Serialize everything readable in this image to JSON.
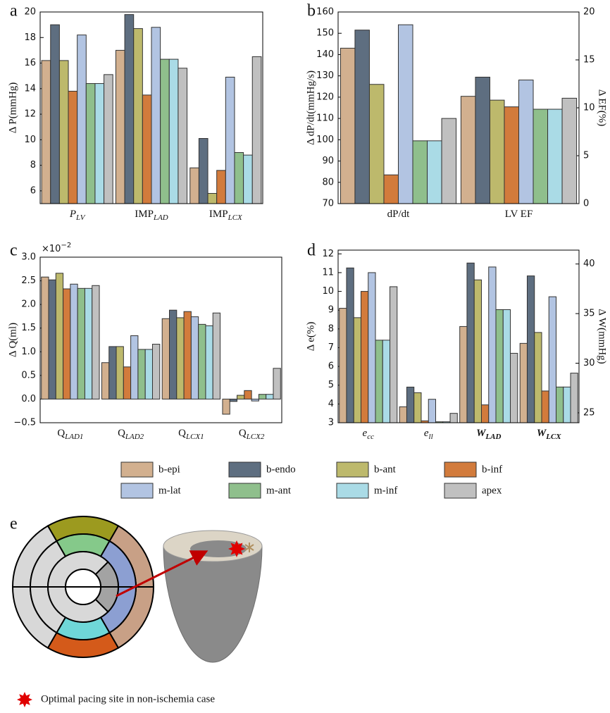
{
  "legend": {
    "entries": [
      {
        "name": "b-epi",
        "color": "#d2b08f"
      },
      {
        "name": "b-endo",
        "color": "#5e6e80"
      },
      {
        "name": "b-ant",
        "color": "#bdb96c"
      },
      {
        "name": "b-inf",
        "color": "#d27b3c"
      },
      {
        "name": "m-lat",
        "color": "#b2c4e2"
      },
      {
        "name": "m-ant",
        "color": "#8fbf8c"
      },
      {
        "name": "m-inf",
        "color": "#aadbe6"
      },
      {
        "name": "apex",
        "color": "#c0c0c0"
      }
    ]
  },
  "chart_data": [
    {
      "type": "bar",
      "panel_label": "a",
      "ylabel": "Δ P(mmHg)",
      "categories": [
        "P",
        "IMP",
        "IMP"
      ],
      "category_subscripts": [
        "LV",
        "LAD",
        "LCX"
      ],
      "ylim": [
        5,
        20
      ],
      "yticks": [
        6,
        8,
        10,
        12,
        14,
        16,
        18,
        20
      ],
      "series": [
        {
          "values": [
            16.2,
            17.0,
            7.8
          ]
        },
        {
          "values": [
            19.0,
            19.8,
            10.1
          ]
        },
        {
          "values": [
            16.2,
            18.7,
            5.8
          ]
        },
        {
          "values": [
            13.8,
            13.5,
            7.6
          ]
        },
        {
          "values": [
            18.2,
            18.8,
            14.9
          ]
        },
        {
          "values": [
            14.4,
            16.3,
            9.0
          ]
        },
        {
          "values": [
            14.4,
            16.3,
            8.8
          ]
        },
        {
          "values": [
            15.1,
            15.6,
            16.5
          ]
        }
      ]
    },
    {
      "type": "bar",
      "panel_label": "b",
      "ylabel": "Δ dP/dt(mmHg/s)",
      "y2label": "Δ EF(%)",
      "categories": [
        "dP/dt",
        "LV EF"
      ],
      "category_axis": [
        "y",
        "y2"
      ],
      "ylim": [
        70,
        160
      ],
      "yticks": [
        70,
        80,
        90,
        100,
        110,
        120,
        130,
        140,
        150,
        160
      ],
      "y2lim": [
        0,
        20
      ],
      "y2ticks": [
        0,
        5,
        10,
        15,
        20
      ],
      "series": [
        {
          "values": [
            143,
            11.2
          ]
        },
        {
          "values": [
            151.5,
            13.2
          ]
        },
        {
          "values": [
            126,
            10.8
          ]
        },
        {
          "values": [
            83.5,
            10.1
          ]
        },
        {
          "values": [
            154,
            12.9
          ]
        },
        {
          "values": [
            99.5,
            9.85
          ]
        },
        {
          "values": [
            99.5,
            9.85
          ]
        },
        {
          "values": [
            110,
            11.0
          ]
        }
      ]
    },
    {
      "type": "bar",
      "panel_label": "c",
      "ylabel": "Δ Q(ml)",
      "scale_label": "×10",
      "scale_exponent": "−2",
      "categories": [
        "Q",
        "Q",
        "Q",
        "Q"
      ],
      "category_subscripts": [
        "LAD1",
        "LAD2",
        "LCX1",
        "LCX2"
      ],
      "ylim": [
        -0.5,
        3.0
      ],
      "yticks": [
        {
          "value": -0.5,
          "label": "−0.5"
        },
        {
          "value": 0,
          "label": "0.0"
        },
        0.5,
        {
          "value": 1,
          "label": "1.0"
        },
        1.5,
        {
          "value": 2,
          "label": "2.0"
        },
        2.5,
        {
          "value": 3,
          "label": "3.0"
        }
      ],
      "series": [
        {
          "values": [
            2.58,
            0.77,
            1.7,
            -0.32
          ]
        },
        {
          "values": [
            2.52,
            1.11,
            1.88,
            -0.05
          ]
        },
        {
          "values": [
            2.66,
            1.11,
            1.72,
            0.08
          ]
        },
        {
          "values": [
            2.33,
            0.68,
            1.85,
            0.18
          ]
        },
        {
          "values": [
            2.43,
            1.34,
            1.74,
            -0.04
          ]
        },
        {
          "values": [
            2.34,
            1.05,
            1.58,
            0.1
          ]
        },
        {
          "values": [
            2.34,
            1.05,
            1.55,
            0.1
          ]
        },
        {
          "values": [
            2.4,
            1.16,
            1.82,
            0.65
          ]
        }
      ]
    },
    {
      "type": "bar",
      "panel_label": "d",
      "ylabel": "Δ e(%)",
      "y2label": "Δ W(mmHg)",
      "categories": [
        "e",
        "e",
        "W",
        "W"
      ],
      "category_subscripts": [
        "cc",
        "ll",
        "LAD",
        "LCX"
      ],
      "category_axis": [
        "y",
        "y",
        "y2",
        "y2"
      ],
      "ylim": [
        3,
        12.2
      ],
      "yticks": [
        3,
        4,
        5,
        6,
        7,
        8,
        9,
        10,
        11,
        12
      ],
      "y2lim": [
        24,
        41.4
      ],
      "y2ticks": [
        25,
        30,
        35,
        40
      ],
      "series": [
        {
          "values": [
            9.1,
            3.85,
            33.7,
            32.0
          ]
        },
        {
          "values": [
            11.25,
            4.9,
            40.1,
            38.8
          ]
        },
        {
          "values": [
            8.6,
            4.6,
            38.4,
            33.1
          ]
        },
        {
          "values": [
            10.0,
            3.1,
            25.8,
            27.2
          ]
        },
        {
          "values": [
            11.0,
            4.25,
            39.7,
            36.7
          ]
        },
        {
          "values": [
            7.4,
            3.05,
            35.4,
            27.6
          ]
        },
        {
          "values": [
            7.4,
            3.05,
            35.4,
            27.6
          ]
        },
        {
          "values": [
            10.25,
            3.5,
            31.0,
            29.0
          ]
        }
      ]
    }
  ],
  "panel_e": {
    "label": "e",
    "caption": "Optimal pacing site in non-ischemia case"
  }
}
